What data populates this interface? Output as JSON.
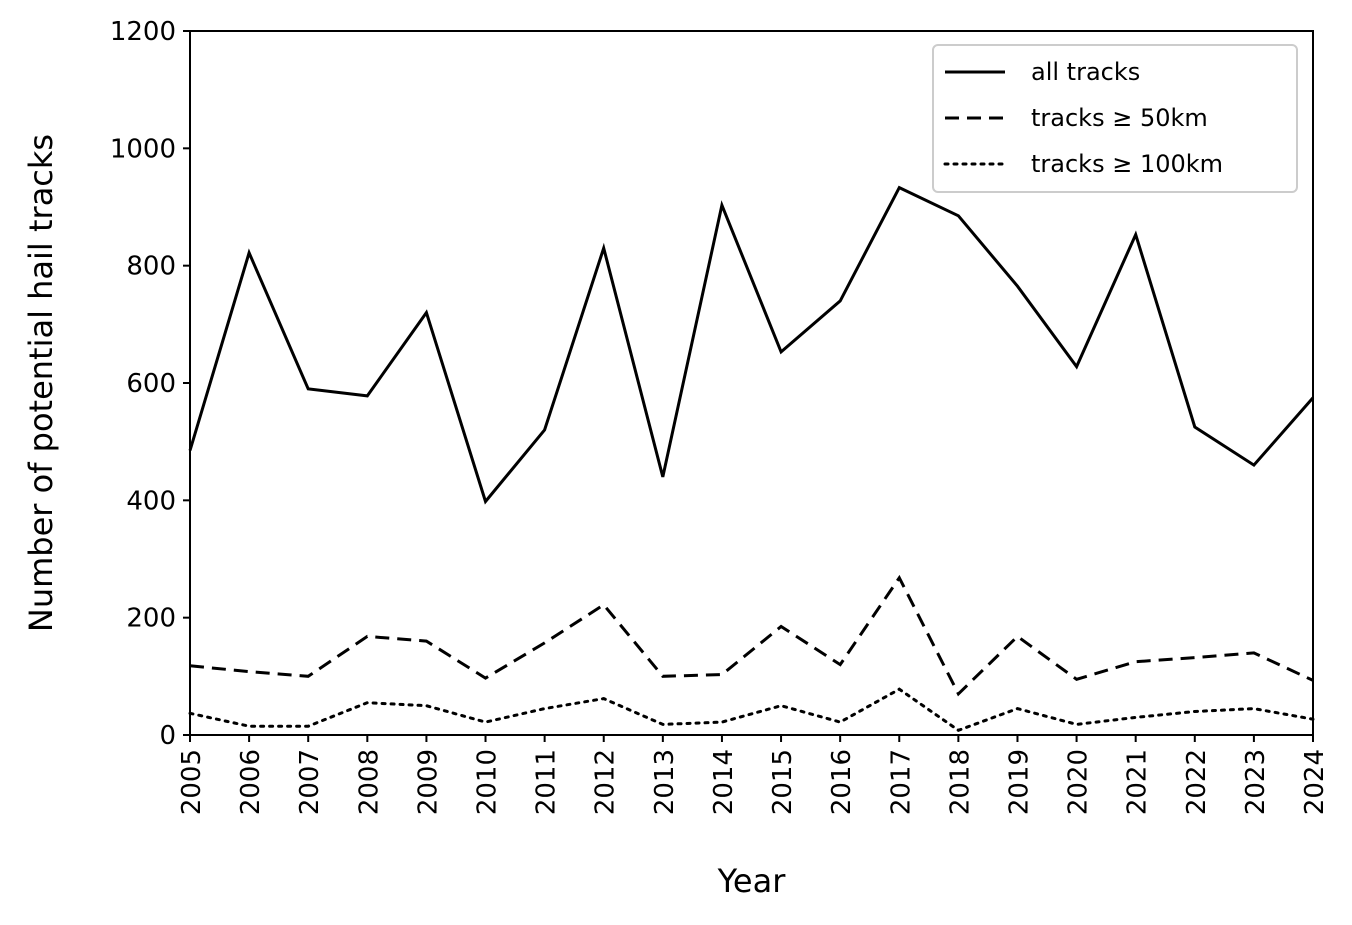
{
  "chart_data": {
    "type": "line",
    "xlabel": "Year",
    "ylabel": "Number of potential hail tracks",
    "ylim": [
      0,
      1200
    ],
    "xlim": [
      2005,
      2024
    ],
    "yticks": [
      0,
      200,
      400,
      600,
      800,
      1000,
      1200
    ],
    "x": [
      2005,
      2006,
      2007,
      2008,
      2009,
      2010,
      2011,
      2012,
      2013,
      2014,
      2015,
      2016,
      2017,
      2018,
      2019,
      2020,
      2021,
      2022,
      2023,
      2024
    ],
    "x_tick_labels": [
      "2005",
      "2006",
      "2007",
      "2008",
      "2009",
      "2010",
      "2011",
      "2012",
      "2013",
      "2014",
      "2015",
      "2016",
      "2017",
      "2018",
      "2019",
      "2020",
      "2021",
      "2022",
      "2023",
      "2024"
    ],
    "grid": false,
    "legend_position": "top-right",
    "series": [
      {
        "name": "all tracks",
        "style": "solid",
        "color": "#000000",
        "values": [
          485,
          822,
          590,
          578,
          720,
          398,
          520,
          830,
          440,
          903,
          653,
          740,
          933,
          885,
          765,
          628,
          853,
          525,
          460,
          575
        ]
      },
      {
        "name": "tracks ≥ 50km",
        "style": "dashed",
        "color": "#000000",
        "values": [
          118,
          108,
          100,
          168,
          160,
          97,
          157,
          222,
          100,
          103,
          185,
          120,
          268,
          70,
          168,
          95,
          125,
          132,
          140,
          93
        ]
      },
      {
        "name": "tracks ≥ 100km",
        "style": "dotted",
        "color": "#000000",
        "values": [
          37,
          15,
          15,
          55,
          50,
          22,
          45,
          62,
          18,
          22,
          50,
          22,
          78,
          8,
          45,
          18,
          30,
          40,
          45,
          27
        ]
      }
    ]
  }
}
